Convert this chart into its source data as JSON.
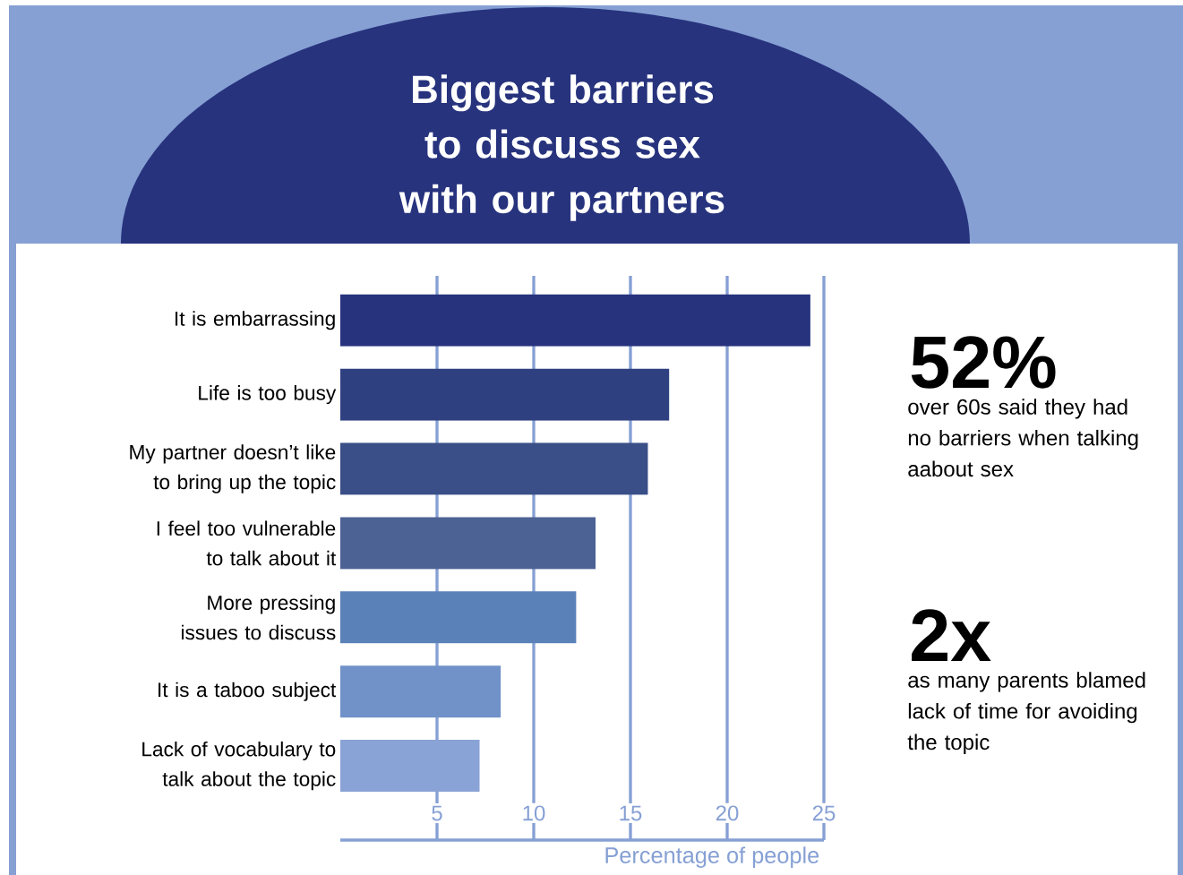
{
  "chart_data": {
    "type": "bar",
    "orientation": "horizontal",
    "title": "Biggest barriers to discuss sex with our partners",
    "xlabel": "Percentage of people",
    "categories": [
      "It is embarrassing",
      "Life is too busy",
      "My partner doesn’t like to bring up the topic",
      "I feel too vulnerable to talk about it",
      "More pressing issues to discuss",
      "It is a taboo subject",
      "Lack of vocabulary to talk about the topic"
    ],
    "values": [
      24.3,
      17,
      15.9,
      13.2,
      12.2,
      8.3,
      7.2
    ],
    "colors": [
      "#27337d",
      "#2f4080",
      "#3a4f88",
      "#4c6194",
      "#5b82b8",
      "#7192c8",
      "#8aa3d6"
    ],
    "xlim": [
      0,
      25
    ],
    "xticks": [
      5,
      10,
      15,
      20,
      25
    ],
    "grid": "x",
    "annotations": [
      "52%",
      "over 60s said they had no barriers when talking aabout sex",
      "2x",
      "as many parents blamed lack of time for avoiding the topic"
    ]
  }
}
